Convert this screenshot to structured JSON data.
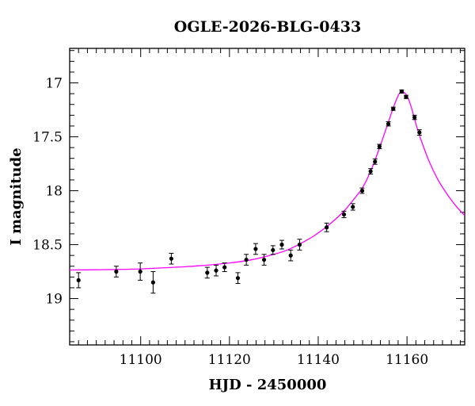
{
  "chart_data": {
    "type": "scatter",
    "title": "OGLE-2026-BLG-0433",
    "xlabel": "HJD - 2450000",
    "ylabel": "I magnitude",
    "xlim": [
      11084,
      11173
    ],
    "ylim": [
      19.43,
      16.68
    ],
    "y_inverted": true,
    "x_major_ticks": [
      11100,
      11120,
      11140,
      11160
    ],
    "x_minor_step": 2,
    "y_major_ticks": [
      17,
      17.5,
      18,
      18.5,
      19
    ],
    "y_minor_step": 0.1,
    "grid": false,
    "colors": {
      "points": "#000000",
      "model": "#ff00ff",
      "axes": "#000000"
    },
    "observations": [
      {
        "x": 11086.0,
        "y": 18.83,
        "err": 0.07
      },
      {
        "x": 11094.5,
        "y": 18.75,
        "err": 0.05
      },
      {
        "x": 11099.9,
        "y": 18.75,
        "err": 0.08
      },
      {
        "x": 11102.8,
        "y": 18.85,
        "err": 0.1
      },
      {
        "x": 11106.9,
        "y": 18.63,
        "err": 0.05
      },
      {
        "x": 11115.0,
        "y": 18.76,
        "err": 0.05
      },
      {
        "x": 11117.0,
        "y": 18.74,
        "err": 0.05
      },
      {
        "x": 11118.9,
        "y": 18.71,
        "err": 0.04
      },
      {
        "x": 11121.9,
        "y": 18.81,
        "err": 0.05
      },
      {
        "x": 11123.8,
        "y": 18.64,
        "err": 0.05
      },
      {
        "x": 11125.9,
        "y": 18.54,
        "err": 0.05
      },
      {
        "x": 11127.8,
        "y": 18.64,
        "err": 0.05
      },
      {
        "x": 11129.8,
        "y": 18.55,
        "err": 0.04
      },
      {
        "x": 11131.8,
        "y": 18.5,
        "err": 0.04
      },
      {
        "x": 11133.8,
        "y": 18.6,
        "err": 0.05
      },
      {
        "x": 11135.8,
        "y": 18.5,
        "err": 0.05
      },
      {
        "x": 11141.9,
        "y": 18.34,
        "err": 0.04
      },
      {
        "x": 11145.8,
        "y": 18.22,
        "err": 0.03
      },
      {
        "x": 11147.8,
        "y": 18.15,
        "err": 0.03
      },
      {
        "x": 11149.9,
        "y": 18.0,
        "err": 0.025
      },
      {
        "x": 11151.8,
        "y": 17.82,
        "err": 0.025
      },
      {
        "x": 11152.8,
        "y": 17.73,
        "err": 0.025
      },
      {
        "x": 11153.8,
        "y": 17.59,
        "err": 0.02
      },
      {
        "x": 11155.8,
        "y": 17.38,
        "err": 0.02
      },
      {
        "x": 11156.9,
        "y": 17.24,
        "err": 0.015
      },
      {
        "x": 11158.8,
        "y": 17.08,
        "err": 0.015
      },
      {
        "x": 11159.8,
        "y": 17.13,
        "err": 0.015
      },
      {
        "x": 11161.7,
        "y": 17.32,
        "err": 0.02
      },
      {
        "x": 11162.8,
        "y": 17.46,
        "err": 0.025
      }
    ],
    "model_curve": [
      {
        "x": 11084,
        "y": 18.735
      },
      {
        "x": 11090,
        "y": 18.733
      },
      {
        "x": 11095,
        "y": 18.73
      },
      {
        "x": 11100,
        "y": 18.725
      },
      {
        "x": 11105,
        "y": 18.715
      },
      {
        "x": 11110,
        "y": 18.705
      },
      {
        "x": 11115,
        "y": 18.69
      },
      {
        "x": 11120,
        "y": 18.67
      },
      {
        "x": 11125,
        "y": 18.64
      },
      {
        "x": 11130,
        "y": 18.59
      },
      {
        "x": 11133,
        "y": 18.55
      },
      {
        "x": 11136,
        "y": 18.49
      },
      {
        "x": 11139,
        "y": 18.42
      },
      {
        "x": 11142,
        "y": 18.33
      },
      {
        "x": 11144,
        "y": 18.26
      },
      {
        "x": 11146,
        "y": 18.18
      },
      {
        "x": 11148,
        "y": 18.08
      },
      {
        "x": 11150,
        "y": 17.97
      },
      {
        "x": 11152,
        "y": 17.8
      },
      {
        "x": 11154,
        "y": 17.58
      },
      {
        "x": 11156,
        "y": 17.34
      },
      {
        "x": 11157,
        "y": 17.22
      },
      {
        "x": 11158,
        "y": 17.12
      },
      {
        "x": 11158.6,
        "y": 17.08
      },
      {
        "x": 11159.2,
        "y": 17.085
      },
      {
        "x": 11160,
        "y": 17.12
      },
      {
        "x": 11161,
        "y": 17.23
      },
      {
        "x": 11162,
        "y": 17.38
      },
      {
        "x": 11163,
        "y": 17.51
      },
      {
        "x": 11165,
        "y": 17.73
      },
      {
        "x": 11167,
        "y": 17.9
      },
      {
        "x": 11169,
        "y": 18.03
      },
      {
        "x": 11171,
        "y": 18.14
      },
      {
        "x": 11173,
        "y": 18.23
      }
    ]
  }
}
